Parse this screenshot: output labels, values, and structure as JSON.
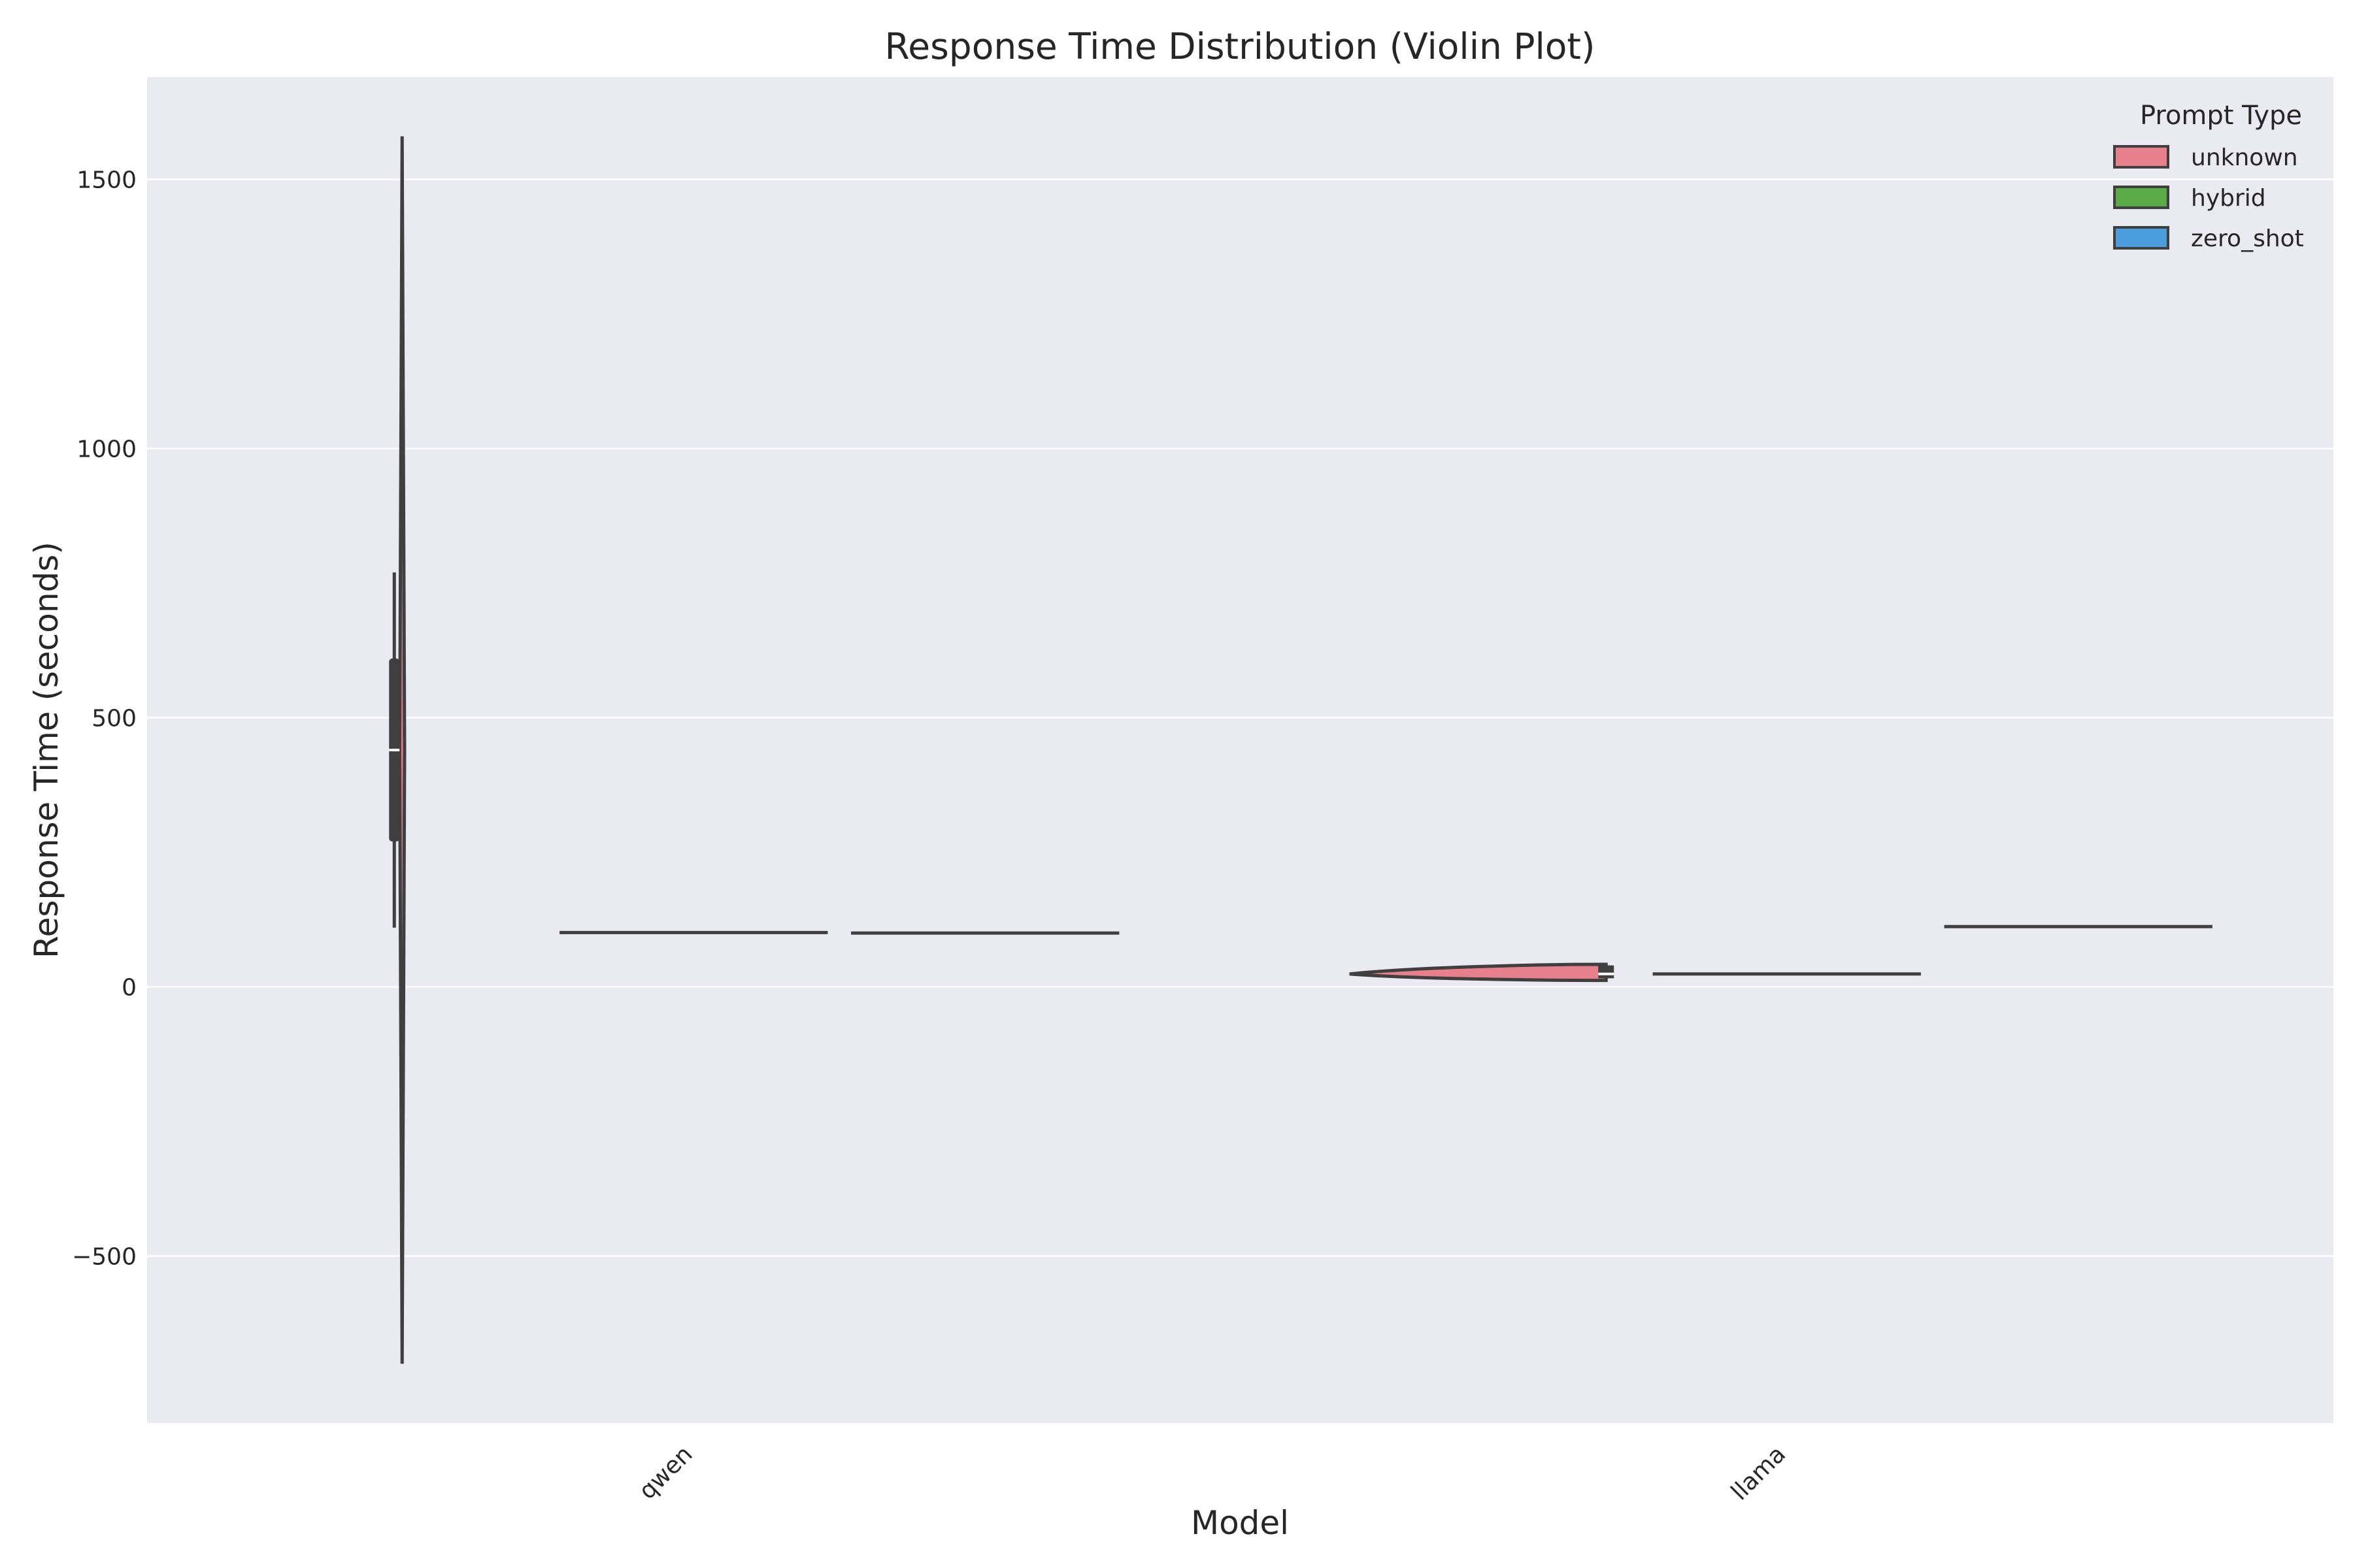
{
  "chart_data": {
    "type": "violin",
    "title": "Response Time Distribution (Violin Plot)",
    "xlabel": "Model",
    "ylabel": "Response Time (seconds)",
    "categories": [
      "qwen",
      "llama"
    ],
    "ylim": [
      -810,
      1690
    ],
    "yticks": [
      -500,
      0,
      500,
      1000,
      1500
    ],
    "ytick_labels": [
      "−500",
      "0",
      "500",
      "1000",
      "1500"
    ],
    "grid": true,
    "legend": {
      "title": "Prompt Type",
      "placement": "top-right",
      "entries": [
        {
          "name": "unknown",
          "color": "#e8808c"
        },
        {
          "name": "hybrid",
          "color": "#5aab48"
        },
        {
          "name": "zero_shot",
          "color": "#4a9edd"
        }
      ]
    },
    "series": [
      {
        "name": "unknown",
        "color": "#e8808c",
        "violins": [
          {
            "category": "qwen",
            "min": -700,
            "max": 1580,
            "q1": 270,
            "median": 440,
            "q3": 610,
            "whisker_low": 110,
            "whisker_high": 770
          },
          {
            "category": "llama",
            "min": 12,
            "max": 42,
            "q1": 16,
            "median": 24,
            "q3": 40,
            "whisker_low": 12,
            "whisker_high": 42
          }
        ]
      },
      {
        "name": "hybrid",
        "color": "#5aab48",
        "violins": [
          {
            "category": "qwen",
            "value": 101
          },
          {
            "category": "llama",
            "value": 24
          }
        ]
      },
      {
        "name": "zero_shot",
        "color": "#4a9edd",
        "violins": [
          {
            "category": "qwen",
            "value": 100
          },
          {
            "category": "llama",
            "value": 112
          }
        ]
      }
    ]
  }
}
